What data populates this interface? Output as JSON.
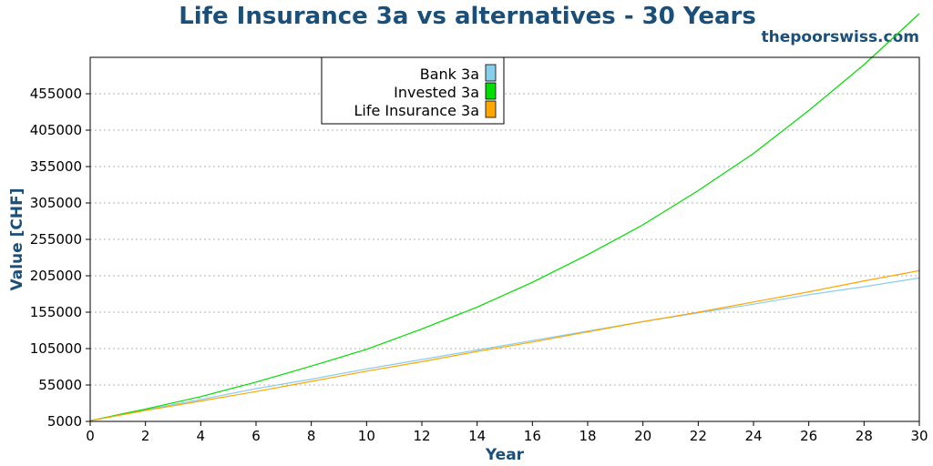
{
  "chart_data": {
    "type": "line",
    "title": "Life Insurance  3a vs alternatives - 30 Years",
    "subtitle": "thepoorswiss.com",
    "xlabel": "Year",
    "ylabel": "Value [CHF]",
    "xlim": [
      0,
      30
    ],
    "ylim": [
      5000,
      505000
    ],
    "xticks": [
      0,
      2,
      4,
      6,
      8,
      10,
      12,
      14,
      16,
      18,
      20,
      22,
      24,
      26,
      28,
      30
    ],
    "yticks": [
      5000,
      55000,
      105000,
      155000,
      205000,
      255000,
      305000,
      355000,
      405000,
      455000
    ],
    "grid": true,
    "legend_position": "top-center",
    "x": [
      0,
      2,
      4,
      6,
      8,
      10,
      12,
      14,
      16,
      18,
      20,
      22,
      24,
      26,
      28,
      30
    ],
    "series": [
      {
        "name": "Bank 3a",
        "color": "#87ceeb",
        "values": [
          6000,
          21000,
          35000,
          50000,
          63000,
          77000,
          90000,
          103000,
          116000,
          129000,
          142000,
          154000,
          166000,
          179000,
          190000,
          202000
        ]
      },
      {
        "name": "Invested 3a",
        "color": "#00dd00",
        "values": [
          6000,
          22000,
          39000,
          59000,
          81000,
          104000,
          132000,
          162000,
          196000,
          234000,
          275000,
          322000,
          373000,
          432000,
          495000,
          565000
        ]
      },
      {
        "name": "Life Insurance 3a",
        "color": "#ffa500",
        "values": [
          6000,
          20000,
          33000,
          46000,
          60000,
          74000,
          87000,
          101000,
          114000,
          128000,
          142000,
          155000,
          169000,
          183000,
          198000,
          212000
        ]
      }
    ]
  }
}
